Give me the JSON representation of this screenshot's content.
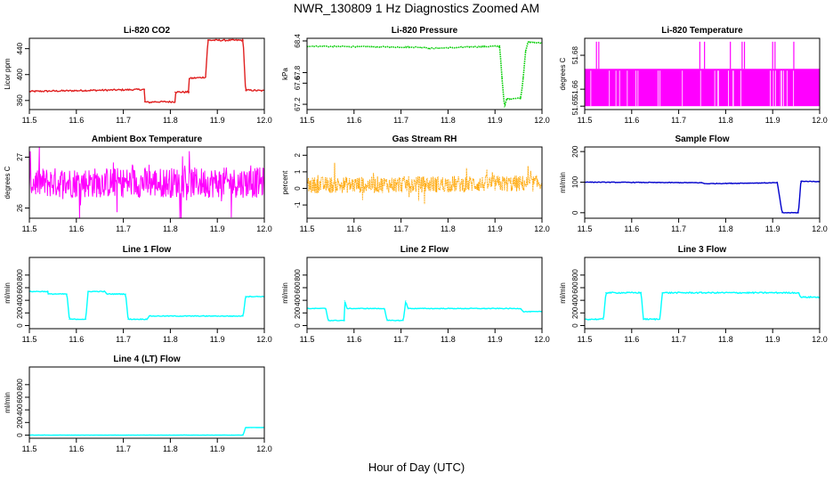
{
  "figure": {
    "title": "NWR_130809  1 Hz Diagnostics Zoomed AM",
    "xlabel": "Hour of Day (UTC)"
  },
  "chart_data": [
    {
      "type": "line",
      "title": "Li-820 CO2",
      "ylabel": "Licor ppm",
      "color": "#e02020",
      "xlim": [
        11.5,
        12.0
      ],
      "xticks": [
        11.5,
        11.6,
        11.7,
        11.8,
        11.9,
        12.0
      ],
      "ylim": [
        346,
        456
      ],
      "yticks": [
        360,
        400,
        440
      ],
      "series": [
        {
          "style": "line",
          "noise": 1.2,
          "x": [
            11.5,
            11.745,
            11.745,
            11.755,
            11.765,
            11.81,
            11.81,
            11.84,
            11.84,
            11.875,
            11.88,
            11.955,
            11.96,
            12.0
          ],
          "y": [
            374,
            377,
            358,
            357,
            358,
            358,
            373,
            373,
            394,
            396,
            453,
            453,
            376,
            375
          ]
        }
      ]
    },
    {
      "type": "line",
      "title": "Li-820 Pressure",
      "ylabel": "kPa",
      "color": "#00cc00",
      "xlim": [
        11.5,
        12.0
      ],
      "xticks": [
        11.5,
        11.6,
        11.7,
        11.8,
        11.9,
        12.0
      ],
      "ylim": [
        67.1,
        68.45
      ],
      "yticks": [
        67.2,
        67.6,
        67.8,
        68.4
      ],
      "series": [
        {
          "style": "dots",
          "noise": 0.01,
          "x": [
            11.5,
            11.75,
            11.76,
            11.9,
            11.91,
            11.915,
            11.92,
            11.925,
            11.955,
            11.96,
            11.965,
            11.97,
            11.975,
            12.0
          ],
          "y": [
            68.3,
            68.28,
            68.26,
            68.3,
            68.3,
            67.7,
            67.15,
            67.3,
            67.32,
            67.7,
            68.2,
            68.38,
            68.37,
            68.36
          ]
        }
      ]
    },
    {
      "type": "line",
      "title": "Li-820 Temperature",
      "ylabel": "degrees C",
      "color": "#ff00ff",
      "xlim": [
        11.5,
        12.0
      ],
      "xticks": [
        11.5,
        11.6,
        11.7,
        11.8,
        11.9,
        12.0
      ],
      "ylim": [
        51.648,
        51.69
      ],
      "yticks": [
        51.65,
        51.66,
        51.68
      ],
      "series": [
        {
          "style": "toggle",
          "x": [
            11.5,
            12.0
          ],
          "y": [
            51.65,
            51.672
          ],
          "spike": 51.688,
          "spikes_x": [
            11.525,
            11.53,
            11.745,
            11.755,
            11.81,
            11.835,
            11.84,
            11.9,
            11.905,
            11.945
          ]
        }
      ]
    },
    {
      "type": "line",
      "title": "Ambient Box Temperature",
      "ylabel": "degrees C",
      "color": "#ff00ff",
      "xlim": [
        11.5,
        12.0
      ],
      "xticks": [
        11.5,
        11.6,
        11.7,
        11.8,
        11.9,
        12.0
      ],
      "ylim": [
        25.8,
        27.2
      ],
      "yticks": [
        26.0,
        27.0
      ],
      "series": [
        {
          "style": "noise",
          "x": [
            11.5,
            12.0
          ],
          "y": [
            26.5,
            26.5
          ],
          "amp": 0.3
        }
      ]
    },
    {
      "type": "line",
      "title": "Gas Stream RH",
      "ylabel": "percent",
      "color": "#ffa500",
      "xlim": [
        11.5,
        12.0
      ],
      "xticks": [
        11.5,
        11.6,
        11.7,
        11.8,
        11.9,
        12.0
      ],
      "ylim": [
        -1.8,
        2.5
      ],
      "yticks": [
        -1,
        0,
        1,
        2
      ],
      "series": [
        {
          "style": "noisedots",
          "x": [
            11.5,
            12.0
          ],
          "y": [
            0.2,
            0.3
          ],
          "amp": 0.5
        }
      ]
    },
    {
      "type": "line",
      "title": "Sample Flow",
      "ylabel": "ml/min",
      "color": "#0000cc",
      "xlim": [
        11.5,
        12.0
      ],
      "xticks": [
        11.5,
        11.6,
        11.7,
        11.8,
        11.9,
        12.0
      ],
      "ylim": [
        -18,
        215
      ],
      "yticks": [
        0,
        100,
        200
      ],
      "series": [
        {
          "style": "line",
          "noise": 1,
          "x": [
            11.5,
            11.75,
            11.755,
            11.91,
            11.92,
            11.955,
            11.96,
            12.0
          ],
          "y": [
            100,
            98,
            95,
            98,
            0,
            0,
            103,
            102
          ]
        }
      ]
    },
    {
      "type": "line",
      "title": "Line 1 Flow",
      "ylabel": "ml/min",
      "color": "#00ffff",
      "xlim": [
        11.5,
        12.0
      ],
      "xticks": [
        11.5,
        11.6,
        11.7,
        11.8,
        11.9,
        12.0
      ],
      "ylim": [
        -50,
        1080
      ],
      "yticks": [
        0,
        200,
        400,
        600,
        800
      ],
      "series": [
        {
          "style": "line",
          "noise": 6,
          "x": [
            11.5,
            11.54,
            11.54,
            11.58,
            11.585,
            11.62,
            11.625,
            11.66,
            11.665,
            11.705,
            11.71,
            11.75,
            11.755,
            11.955,
            11.96,
            12.0
          ],
          "y": [
            540,
            540,
            500,
            500,
            100,
            100,
            540,
            540,
            500,
            500,
            100,
            100,
            150,
            150,
            460,
            460
          ]
        }
      ]
    },
    {
      "type": "line",
      "title": "Line 2 Flow",
      "ylabel": "ml/min",
      "color": "#00ffff",
      "xlim": [
        11.5,
        12.0
      ],
      "xticks": [
        11.5,
        11.6,
        11.7,
        11.8,
        11.9,
        12.0
      ],
      "ylim": [
        -50,
        1080
      ],
      "yticks": [
        0,
        200,
        400,
        600,
        800
      ],
      "series": [
        {
          "style": "line",
          "noise": 5,
          "x": [
            11.5,
            11.54,
            11.545,
            11.58,
            11.58,
            11.585,
            11.665,
            11.67,
            11.705,
            11.71,
            11.715,
            11.955,
            11.96,
            12.0
          ],
          "y": [
            270,
            270,
            80,
            80,
            390,
            270,
            270,
            80,
            80,
            390,
            270,
            270,
            220,
            220
          ]
        }
      ]
    },
    {
      "type": "line",
      "title": "Line 3 Flow",
      "ylabel": "ml/min",
      "color": "#00ffff",
      "xlim": [
        11.5,
        12.0
      ],
      "xticks": [
        11.5,
        11.6,
        11.7,
        11.8,
        11.9,
        12.0
      ],
      "ylim": [
        -50,
        1080
      ],
      "yticks": [
        0,
        200,
        400,
        600,
        800
      ],
      "series": [
        {
          "style": "line",
          "noise": 10,
          "x": [
            11.5,
            11.54,
            11.545,
            11.62,
            11.625,
            11.66,
            11.665,
            11.955,
            11.96,
            12.0
          ],
          "y": [
            100,
            100,
            520,
            520,
            100,
            100,
            520,
            520,
            450,
            450
          ]
        }
      ]
    },
    {
      "type": "line",
      "title": "Line 4 (LT) Flow",
      "ylabel": "ml/min",
      "color": "#00ffff",
      "xlim": [
        11.5,
        12.0
      ],
      "xticks": [
        11.5,
        11.6,
        11.7,
        11.8,
        11.9,
        12.0
      ],
      "ylim": [
        -50,
        1080
      ],
      "yticks": [
        0,
        200,
        400,
        600,
        800
      ],
      "series": [
        {
          "style": "line",
          "noise": 2,
          "x": [
            11.5,
            11.955,
            11.96,
            12.0
          ],
          "y": [
            0,
            0,
            120,
            120
          ]
        }
      ]
    }
  ]
}
